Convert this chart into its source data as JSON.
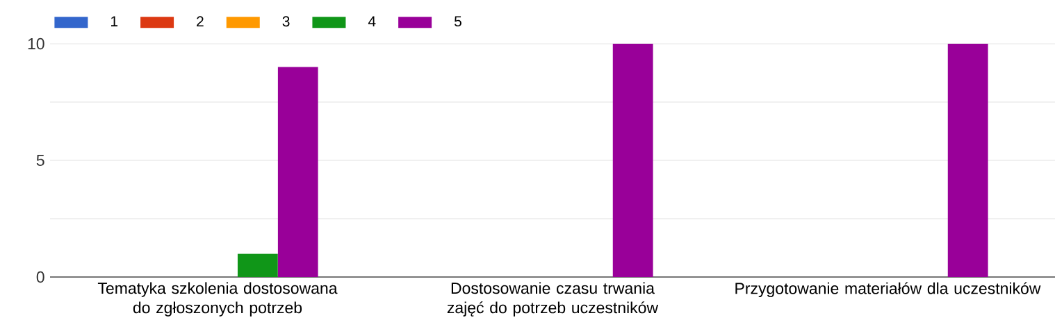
{
  "chart_data": {
    "type": "bar",
    "categories": [
      "Tematyka szkolenia dostosowana do zgłoszonych potrzeb",
      "Dostosowanie czasu trwania zajęć do potrzeb uczestników",
      "Przygotowanie materiałów dla uczestników"
    ],
    "series": [
      {
        "name": "1",
        "color": "#3366cc",
        "values": [
          0,
          0,
          0
        ]
      },
      {
        "name": "2",
        "color": "#dc3912",
        "values": [
          0,
          0,
          0
        ]
      },
      {
        "name": "3",
        "color": "#ff9900",
        "values": [
          0,
          0,
          0
        ]
      },
      {
        "name": "4",
        "color": "#109618",
        "values": [
          1,
          0,
          0
        ]
      },
      {
        "name": "5",
        "color": "#990099",
        "values": [
          9,
          10,
          10
        ]
      }
    ],
    "ylim": [
      0,
      10
    ],
    "yticks": [
      0,
      {
        "value": 2.5,
        "label": null
      },
      5,
      {
        "value": 7.5,
        "label": null
      },
      10
    ],
    "grid": "y",
    "legend": "top left"
  }
}
